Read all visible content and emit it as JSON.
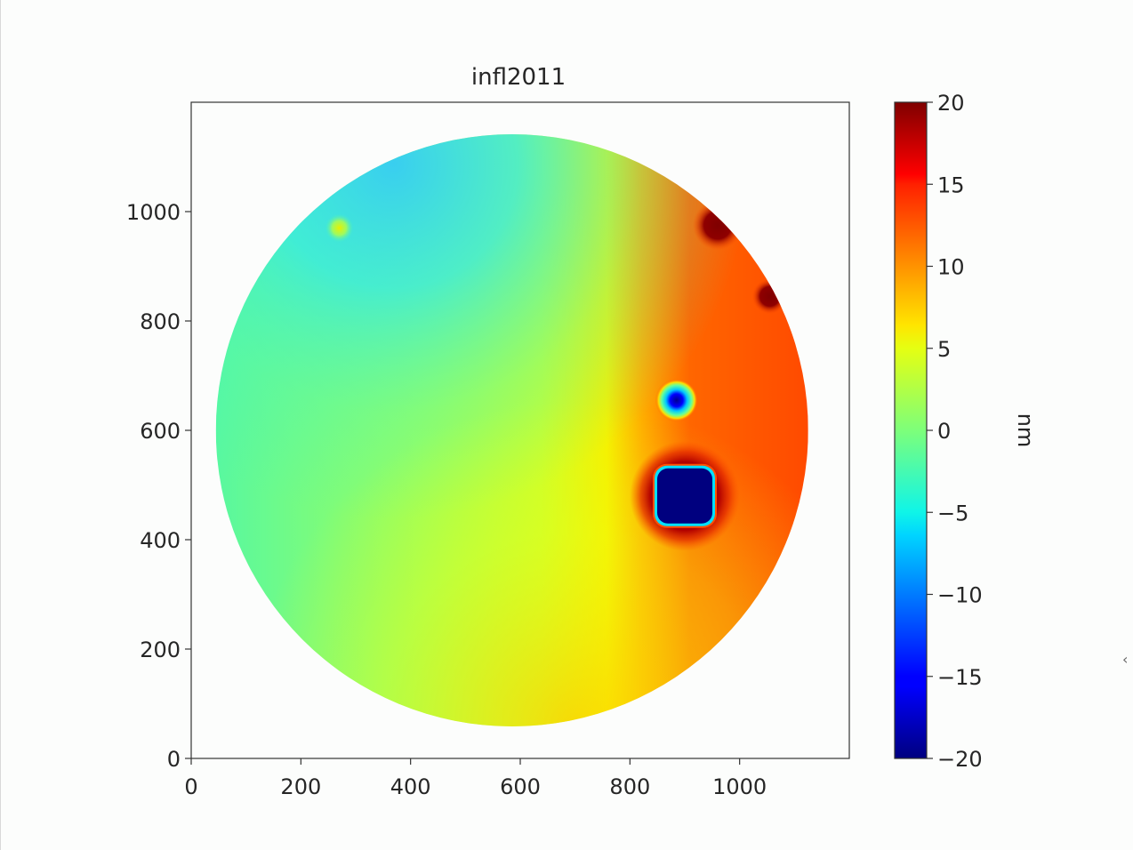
{
  "chart_data": {
    "type": "heatmap",
    "title": "infl2011",
    "xlabel": "",
    "ylabel": "",
    "xlim": [
      0,
      1200
    ],
    "ylim": [
      0,
      1200
    ],
    "x_ticks": [
      0,
      200,
      400,
      600,
      800,
      1000
    ],
    "y_ticks": [
      0,
      200,
      400,
      600,
      800,
      1000
    ],
    "colormap": "jet",
    "colorbar": {
      "label": "nm",
      "range": [
        -20,
        20
      ],
      "ticks": [
        20,
        15,
        10,
        5,
        0,
        -5,
        -10,
        -15,
        -20
      ],
      "tick_labels": [
        "20",
        "15",
        "10",
        "5",
        "0",
        "−5",
        "−10",
        "−15",
        "−20"
      ]
    },
    "aperture": {
      "center_x": 585,
      "center_y": 600,
      "radius": 540
    },
    "base_field": "gradient from about 0 nm (upper left) to about 2-4 nm (centre) rising steeply to about 14-16 nm on the right side",
    "features": [
      {
        "name": "square depression",
        "x": 900,
        "y": 480,
        "value_nm": -20,
        "ring_value_nm": 20
      },
      {
        "name": "small pit",
        "x": 885,
        "y": 655,
        "value_nm": -18
      },
      {
        "name": "upper-right bump",
        "x": 960,
        "y": 975,
        "value_nm": 20
      },
      {
        "name": "right-edge bump",
        "x": 1055,
        "y": 845,
        "value_nm": 20
      },
      {
        "name": "upper-left spot",
        "x": 270,
        "y": 970,
        "value_nm": 5
      }
    ]
  },
  "ui": {
    "right_edge_glyph": "‹"
  }
}
